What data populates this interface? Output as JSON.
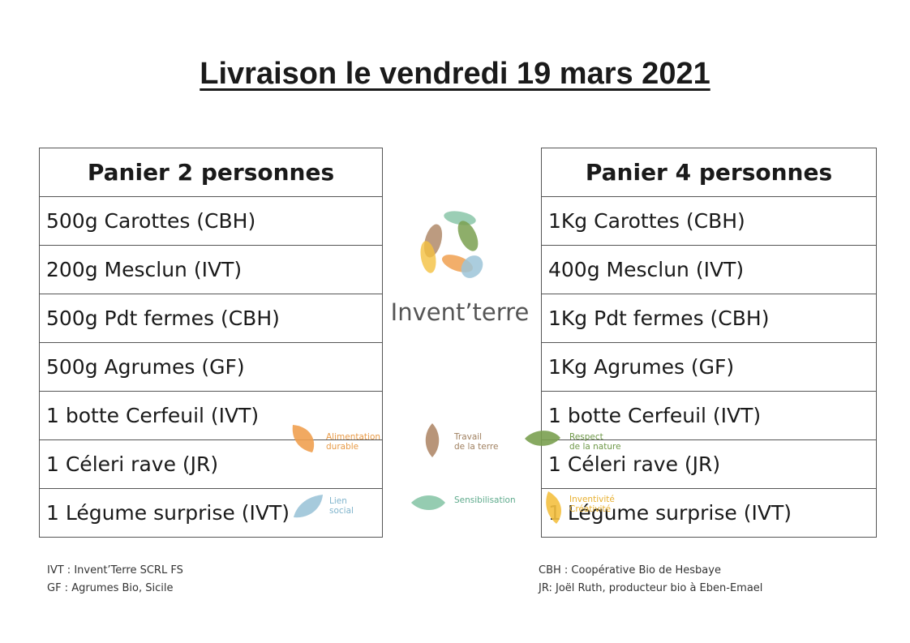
{
  "title": "Livraison le vendredi 19 mars 2021",
  "basket2": {
    "header": "Panier 2 personnes",
    "items": [
      "500g Carottes (CBH)",
      "200g Mesclun (IVT)",
      "500g Pdt fermes (CBH)",
      "500g Agrumes (GF)",
      "1 botte Cerfeuil (IVT)",
      "1 Céleri rave (JR)",
      "1 Légume surprise (IVT)"
    ]
  },
  "basket4": {
    "header": "Panier 4 personnes",
    "items": [
      "1Kg Carottes (CBH)",
      "400g Mesclun (IVT)",
      "1Kg Pdt fermes (CBH)",
      "1Kg Agrumes (GF)",
      "1 botte Cerfeuil (IVT)",
      "1 Céleri rave (JR)",
      "1 Légume surprise (IVT)"
    ]
  },
  "logo": {
    "name": "Invent’terre"
  },
  "values": {
    "alimentation": "Alimentation\ndurable",
    "travail": "Travail\nde la terre",
    "respect": "Respect\nde la nature",
    "lien": "Lien\nsocial",
    "sensibilisation": "Sensibilisation",
    "inventivite": "Inventivité\nCréativité"
  },
  "colors": {
    "orange": "#f0a050",
    "brown": "#b08a6a",
    "green": "#7aa050",
    "blue": "#9cc4d8",
    "teal": "#8ac6a8",
    "yellow": "#f4c040"
  },
  "legend_left": [
    "IVT : Invent’Terre SCRL FS",
    "GF : Agrumes Bio, Sicile"
  ],
  "legend_right": [
    "CBH : Coopérative Bio de Hesbaye",
    "JR: Joël Ruth, producteur bio à Eben-Emael"
  ]
}
